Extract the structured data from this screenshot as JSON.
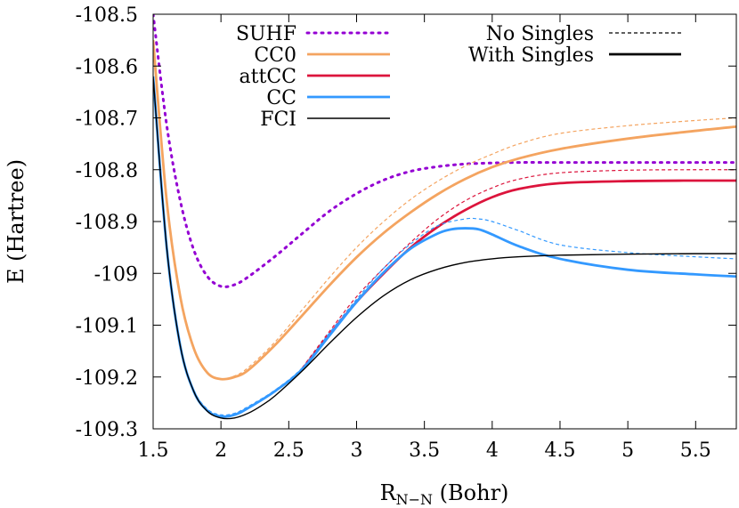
{
  "chart_data": {
    "type": "line",
    "title": "",
    "xlabel": {
      "main": "R",
      "sub": "N−N",
      "suffix": " (Bohr)"
    },
    "ylabel": "E (Hartree)",
    "xlim": [
      1.5,
      5.8
    ],
    "ylim": [
      -109.3,
      -108.5
    ],
    "x_ticks": [
      {
        "v": 1.5,
        "label": "1.5"
      },
      {
        "v": 2,
        "label": "2"
      },
      {
        "v": 2.5,
        "label": "2.5"
      },
      {
        "v": 3,
        "label": "3"
      },
      {
        "v": 3.5,
        "label": "3.5"
      },
      {
        "v": 4,
        "label": "4"
      },
      {
        "v": 4.5,
        "label": "4.5"
      },
      {
        "v": 5,
        "label": "5"
      },
      {
        "v": 5.5,
        "label": "5.5"
      }
    ],
    "y_ticks": [
      {
        "v": -108.5,
        "label": "-108.5"
      },
      {
        "v": -108.6,
        "label": "-108.6"
      },
      {
        "v": -108.7,
        "label": "-108.7"
      },
      {
        "v": -108.8,
        "label": "-108.8"
      },
      {
        "v": -108.9,
        "label": "-108.9"
      },
      {
        "v": -109.0,
        "label": "-109"
      },
      {
        "v": -109.1,
        "label": "-109.1"
      },
      {
        "v": -109.2,
        "label": "-109.2"
      },
      {
        "v": -109.3,
        "label": "-109.3"
      }
    ],
    "legend_methods": [
      {
        "name": "SUHF",
        "color": "#9400d3",
        "dash": "dotted"
      },
      {
        "name": "CC0",
        "color": "#f4a460",
        "dash": "solid"
      },
      {
        "name": "attCC",
        "color": "#dc143c",
        "dash": "solid"
      },
      {
        "name": "CC",
        "color": "#3399ff",
        "dash": "solid"
      },
      {
        "name": "FCI",
        "color": "#000000",
        "dash": "solid"
      }
    ],
    "legend_styles": [
      {
        "name": "No Singles",
        "dash": "dashed"
      },
      {
        "name": "With Singles",
        "dash": "solid"
      }
    ],
    "series": [
      {
        "name": "SUHF",
        "color": "#9400d3",
        "style": "dotted",
        "x": [
          1.5,
          1.6,
          1.7,
          1.8,
          1.9,
          2.0,
          2.1,
          2.2,
          2.4,
          2.6,
          2.8,
          3.0,
          3.2,
          3.4,
          3.6,
          3.8,
          4.0,
          4.2,
          4.5,
          5.0,
          5.5,
          5.8
        ],
        "y": [
          -108.5,
          -108.714,
          -108.86,
          -108.955,
          -109.006,
          -109.025,
          -109.022,
          -109.007,
          -108.967,
          -108.923,
          -108.88,
          -108.846,
          -108.82,
          -108.803,
          -108.794,
          -108.789,
          -108.787,
          -108.786,
          -108.786,
          -108.786,
          -108.786,
          -108.786
        ]
      },
      {
        "name": "CC0 (No Singles)",
        "color": "#f4a460",
        "style": "dashed",
        "x": [
          1.5,
          1.6,
          1.7,
          1.8,
          1.9,
          2.0,
          2.1,
          2.2,
          2.4,
          2.6,
          2.8,
          3.0,
          3.2,
          3.4,
          3.6,
          3.8,
          4.0,
          4.2,
          4.5,
          5.0,
          5.5,
          5.8
        ],
        "y": [
          -108.55,
          -108.86,
          -109.045,
          -109.145,
          -109.192,
          -109.204,
          -109.198,
          -109.182,
          -109.132,
          -109.07,
          -109.008,
          -108.95,
          -108.9,
          -108.857,
          -108.822,
          -108.793,
          -108.77,
          -108.75,
          -108.73,
          -108.715,
          -108.705,
          -108.7
        ]
      },
      {
        "name": "CC0 (With Singles)",
        "color": "#f4a460",
        "style": "solid",
        "x": [
          1.5,
          1.6,
          1.7,
          1.8,
          1.9,
          2.0,
          2.1,
          2.2,
          2.4,
          2.6,
          2.8,
          3.0,
          3.2,
          3.4,
          3.6,
          3.8,
          4.0,
          4.2,
          4.5,
          5.0,
          5.5,
          5.8
        ],
        "y": [
          -108.55,
          -108.86,
          -109.045,
          -109.145,
          -109.192,
          -109.204,
          -109.2,
          -109.187,
          -109.138,
          -109.081,
          -109.023,
          -108.969,
          -108.922,
          -108.882,
          -108.847,
          -108.818,
          -108.795,
          -108.778,
          -108.76,
          -108.74,
          -108.725,
          -108.717
        ]
      },
      {
        "name": "attCC (No Singles)",
        "color": "#dc143c",
        "style": "dashed",
        "x": [
          2.6,
          2.8,
          3.0,
          3.2,
          3.4,
          3.6,
          3.8,
          4.0,
          4.2,
          4.5,
          5.0,
          5.5,
          5.8
        ],
        "y": [
          -109.182,
          -109.112,
          -109.045,
          -108.99,
          -108.94,
          -108.895,
          -108.86,
          -108.835,
          -108.818,
          -108.806,
          -108.801,
          -108.8,
          -108.8
        ]
      },
      {
        "name": "attCC (With Singles)",
        "color": "#dc143c",
        "style": "solid",
        "x": [
          2.6,
          2.8,
          3.0,
          3.2,
          3.4,
          3.6,
          3.8,
          4.0,
          4.2,
          4.5,
          5.0,
          5.5,
          5.8
        ],
        "y": [
          -109.185,
          -109.118,
          -109.055,
          -109.0,
          -108.95,
          -108.91,
          -108.878,
          -108.853,
          -108.837,
          -108.826,
          -108.822,
          -108.821,
          -108.821
        ]
      },
      {
        "name": "CC (No Singles)",
        "color": "#3399ff",
        "style": "dashed",
        "x": [
          1.5,
          1.6,
          1.7,
          1.8,
          1.9,
          2.0,
          2.1,
          2.2,
          2.4,
          2.6,
          2.8,
          3.0,
          3.2,
          3.4,
          3.6,
          3.8,
          3.9,
          4.0,
          4.2,
          4.5,
          5.0,
          5.5,
          5.8
        ],
        "y": [
          -108.62,
          -108.95,
          -109.14,
          -109.225,
          -109.262,
          -109.273,
          -109.27,
          -109.257,
          -109.225,
          -109.182,
          -109.115,
          -109.05,
          -108.99,
          -108.943,
          -108.908,
          -108.895,
          -108.895,
          -108.9,
          -108.918,
          -108.945,
          -108.96,
          -108.968,
          -108.972
        ]
      },
      {
        "name": "CC (With Singles)",
        "color": "#3399ff",
        "style": "solid",
        "x": [
          1.5,
          1.6,
          1.7,
          1.8,
          1.9,
          2.0,
          2.1,
          2.2,
          2.4,
          2.6,
          2.8,
          3.0,
          3.2,
          3.4,
          3.6,
          3.7,
          3.8,
          3.9,
          4.0,
          4.2,
          4.5,
          5.0,
          5.5,
          5.8
        ],
        "y": [
          -108.62,
          -108.95,
          -109.14,
          -109.228,
          -109.265,
          -109.276,
          -109.273,
          -109.26,
          -109.227,
          -109.185,
          -109.12,
          -109.055,
          -108.998,
          -108.952,
          -108.923,
          -108.915,
          -108.913,
          -108.915,
          -108.925,
          -108.948,
          -108.972,
          -108.993,
          -109.002,
          -109.006
        ]
      },
      {
        "name": "FCI",
        "color": "#000000",
        "style": "solid",
        "x": [
          1.5,
          1.6,
          1.7,
          1.8,
          1.9,
          2.0,
          2.1,
          2.2,
          2.3,
          2.4,
          2.6,
          2.8,
          3.0,
          3.2,
          3.4,
          3.6,
          3.8,
          4.0,
          4.2,
          4.5,
          5.0,
          5.5,
          5.8
        ],
        "y": [
          -108.62,
          -108.95,
          -109.14,
          -109.228,
          -109.266,
          -109.279,
          -109.279,
          -109.27,
          -109.255,
          -109.236,
          -109.188,
          -109.135,
          -109.085,
          -109.043,
          -109.012,
          -108.992,
          -108.979,
          -108.972,
          -108.968,
          -108.965,
          -108.963,
          -108.962,
          -108.962
        ]
      }
    ]
  }
}
